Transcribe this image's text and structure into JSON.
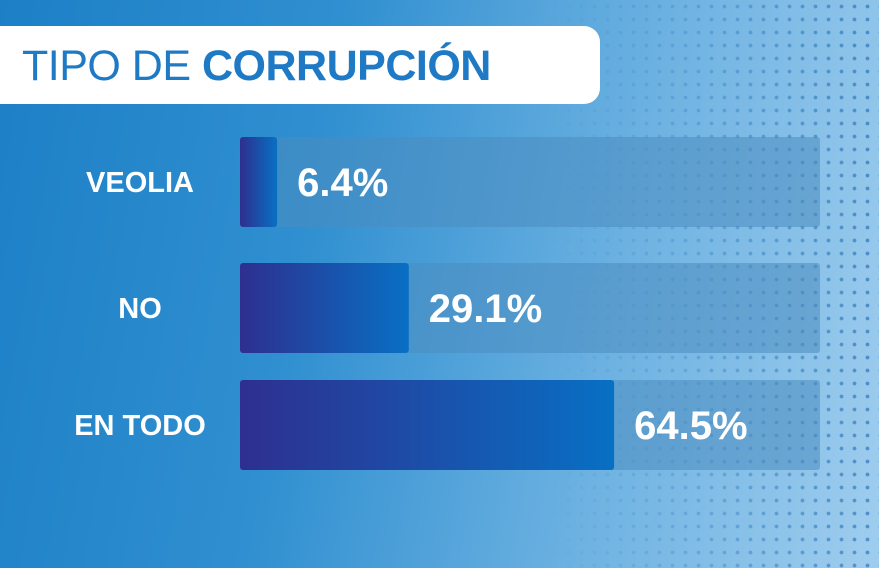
{
  "header": {
    "title_light": "TIPO DE",
    "title_bold": "CORRUPCIÓN"
  },
  "colors": {
    "bar_start": "#2e2f8f",
    "bar_end": "#0870c4",
    "track": "#4a8cc0",
    "title": "#1f7ac6"
  },
  "chart_data": {
    "type": "bar",
    "orientation": "horizontal",
    "title": "TIPO DE CORRUPCIÓN",
    "xlabel": "",
    "ylabel": "",
    "xlim": [
      0,
      100
    ],
    "grid": false,
    "categories": [
      "VEOLIA",
      "NO",
      "EN TODO"
    ],
    "values": [
      6.4,
      29.1,
      64.5
    ],
    "value_labels": [
      "6.4%",
      "29.1%",
      "64.5%"
    ]
  }
}
